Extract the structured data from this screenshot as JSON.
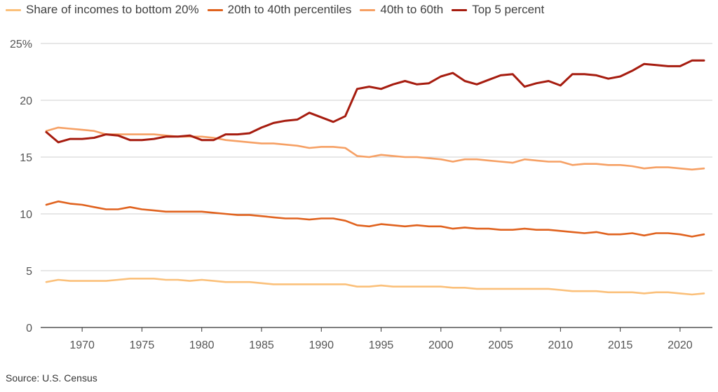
{
  "colors": {
    "bottom20": "#fbc07a",
    "p20to40": "#e0621e",
    "p40to60": "#f6a064",
    "top5": "#a61c0f"
  },
  "chart_data": {
    "type": "line",
    "title": "",
    "xlabel": "",
    "ylabel": "",
    "xlim": [
      1967,
      2022
    ],
    "ylim": [
      0,
      25
    ],
    "y_ticks": [
      0,
      5,
      10,
      15,
      20,
      25
    ],
    "y_tick_labels": [
      "0",
      "5",
      "10",
      "15",
      "20",
      "25%"
    ],
    "x_ticks": [
      1970,
      1975,
      1980,
      1985,
      1990,
      1995,
      2000,
      2005,
      2010,
      2015,
      2020
    ],
    "x_tick_labels": [
      "1970",
      "1975",
      "1980",
      "1985",
      "1990",
      "1995",
      "2000",
      "2005",
      "2010",
      "2015",
      "2020"
    ],
    "grid": "horizontal",
    "legend_position": "top-left",
    "x": [
      1967,
      1968,
      1969,
      1970,
      1971,
      1972,
      1973,
      1974,
      1975,
      1976,
      1977,
      1978,
      1979,
      1980,
      1981,
      1982,
      1983,
      1984,
      1985,
      1986,
      1987,
      1988,
      1989,
      1990,
      1991,
      1992,
      1993,
      1994,
      1995,
      1996,
      1997,
      1998,
      1999,
      2000,
      2001,
      2002,
      2003,
      2004,
      2005,
      2006,
      2007,
      2008,
      2009,
      2010,
      2011,
      2012,
      2013,
      2014,
      2015,
      2016,
      2017,
      2018,
      2019,
      2020,
      2021,
      2022
    ],
    "series": [
      {
        "name": "Share of incomes to bottom 20%",
        "color_key": "bottom20",
        "values": [
          4.0,
          4.2,
          4.1,
          4.1,
          4.1,
          4.1,
          4.2,
          4.3,
          4.3,
          4.3,
          4.2,
          4.2,
          4.1,
          4.2,
          4.1,
          4.0,
          4.0,
          4.0,
          3.9,
          3.8,
          3.8,
          3.8,
          3.8,
          3.8,
          3.8,
          3.8,
          3.6,
          3.6,
          3.7,
          3.6,
          3.6,
          3.6,
          3.6,
          3.6,
          3.5,
          3.5,
          3.4,
          3.4,
          3.4,
          3.4,
          3.4,
          3.4,
          3.4,
          3.3,
          3.2,
          3.2,
          3.2,
          3.1,
          3.1,
          3.1,
          3.0,
          3.1,
          3.1,
          3.0,
          2.9,
          3.0
        ]
      },
      {
        "name": "20th to 40th percentiles",
        "color_key": "p20to40",
        "values": [
          10.8,
          11.1,
          10.9,
          10.8,
          10.6,
          10.4,
          10.4,
          10.6,
          10.4,
          10.3,
          10.2,
          10.2,
          10.2,
          10.2,
          10.1,
          10.0,
          9.9,
          9.9,
          9.8,
          9.7,
          9.6,
          9.6,
          9.5,
          9.6,
          9.6,
          9.4,
          9.0,
          8.9,
          9.1,
          9.0,
          8.9,
          9.0,
          8.9,
          8.9,
          8.7,
          8.8,
          8.7,
          8.7,
          8.6,
          8.6,
          8.7,
          8.6,
          8.6,
          8.5,
          8.4,
          8.3,
          8.4,
          8.2,
          8.2,
          8.3,
          8.1,
          8.3,
          8.3,
          8.2,
          8.0,
          8.2
        ]
      },
      {
        "name": "40th to 60th",
        "color_key": "p40to60",
        "values": [
          17.3,
          17.6,
          17.5,
          17.4,
          17.3,
          17.0,
          17.0,
          17.0,
          17.0,
          17.0,
          16.9,
          16.8,
          16.8,
          16.8,
          16.7,
          16.5,
          16.4,
          16.3,
          16.2,
          16.2,
          16.1,
          16.0,
          15.8,
          15.9,
          15.9,
          15.8,
          15.1,
          15.0,
          15.2,
          15.1,
          15.0,
          15.0,
          14.9,
          14.8,
          14.6,
          14.8,
          14.8,
          14.7,
          14.6,
          14.5,
          14.8,
          14.7,
          14.6,
          14.6,
          14.3,
          14.4,
          14.4,
          14.3,
          14.3,
          14.2,
          14.0,
          14.1,
          14.1,
          14.0,
          13.9,
          14.0
        ]
      },
      {
        "name": "Top 5 percent",
        "color_key": "top5",
        "values": [
          17.2,
          16.3,
          16.6,
          16.6,
          16.7,
          17.0,
          16.9,
          16.5,
          16.5,
          16.6,
          16.8,
          16.8,
          16.9,
          16.5,
          16.5,
          17.0,
          17.0,
          17.1,
          17.6,
          18.0,
          18.2,
          18.3,
          18.9,
          18.5,
          18.1,
          18.6,
          21.0,
          21.2,
          21.0,
          21.4,
          21.7,
          21.4,
          21.5,
          22.1,
          22.4,
          21.7,
          21.4,
          21.8,
          22.2,
          22.3,
          21.2,
          21.5,
          21.7,
          21.3,
          22.3,
          22.3,
          22.2,
          21.9,
          22.1,
          22.6,
          23.2,
          23.1,
          23.0,
          23.0,
          23.5,
          23.5
        ]
      }
    ]
  },
  "source": "Source: U.S. Census"
}
